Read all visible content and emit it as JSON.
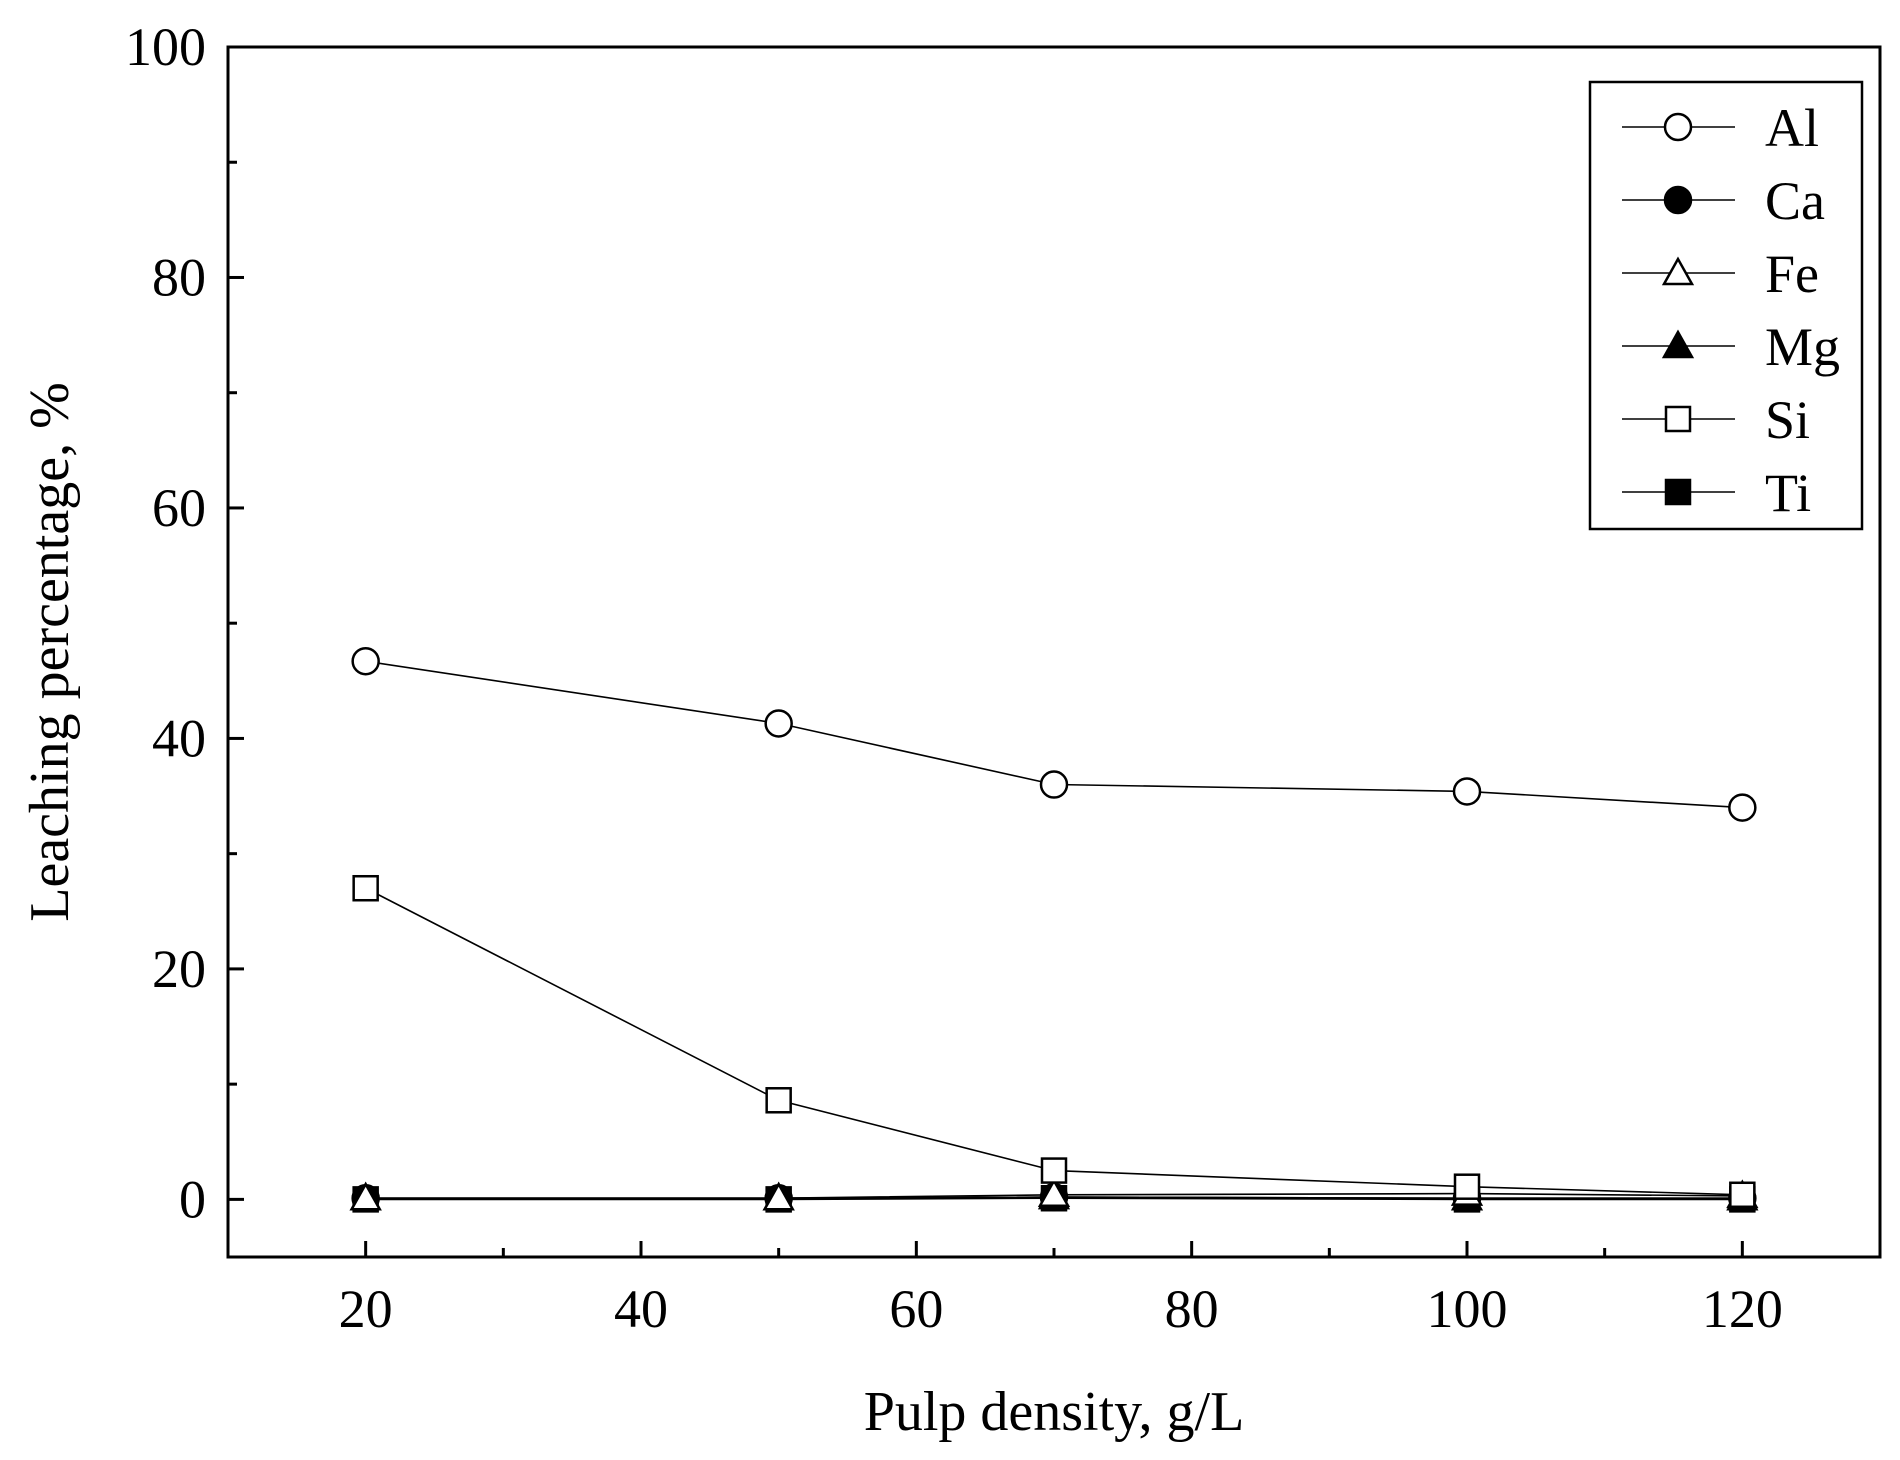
{
  "chart_data": {
    "type": "line",
    "title": "",
    "xlabel": "Pulp density, g/L",
    "ylabel": "Leaching percentage, %",
    "xlim": [
      10,
      130
    ],
    "ylim": [
      -5,
      100
    ],
    "x_ticks": [
      20,
      40,
      60,
      80,
      100,
      120
    ],
    "x_tick_labels": [
      "20",
      "40",
      "60",
      "80",
      "100",
      "120"
    ],
    "y_ticks": [
      0,
      20,
      40,
      60,
      80,
      100
    ],
    "y_tick_labels": [
      "0",
      "20",
      "40",
      "60",
      "80",
      "100"
    ],
    "grid": false,
    "legend_position": "top-right",
    "x": [
      20,
      50,
      70,
      100,
      120
    ],
    "series": [
      {
        "name": "Al",
        "marker": "circle-open",
        "values": [
          46.7,
          41.3,
          36.0,
          35.4,
          34.0
        ]
      },
      {
        "name": "Ca",
        "marker": "circle-filled",
        "values": [
          0.1,
          0.1,
          0.2,
          0.1,
          0.1
        ]
      },
      {
        "name": "Fe",
        "marker": "triangle-open",
        "values": [
          0.1,
          0.1,
          0.4,
          0.5,
          0.3
        ]
      },
      {
        "name": "Mg",
        "marker": "triangle-filled",
        "values": [
          0.1,
          0.1,
          0.2,
          0.1,
          0.1
        ]
      },
      {
        "name": "Si",
        "marker": "square-open",
        "values": [
          27.0,
          8.6,
          2.5,
          1.1,
          0.4
        ]
      },
      {
        "name": "Ti",
        "marker": "square-filled",
        "values": [
          0.0,
          0.0,
          0.1,
          0.0,
          0.0
        ]
      }
    ]
  }
}
